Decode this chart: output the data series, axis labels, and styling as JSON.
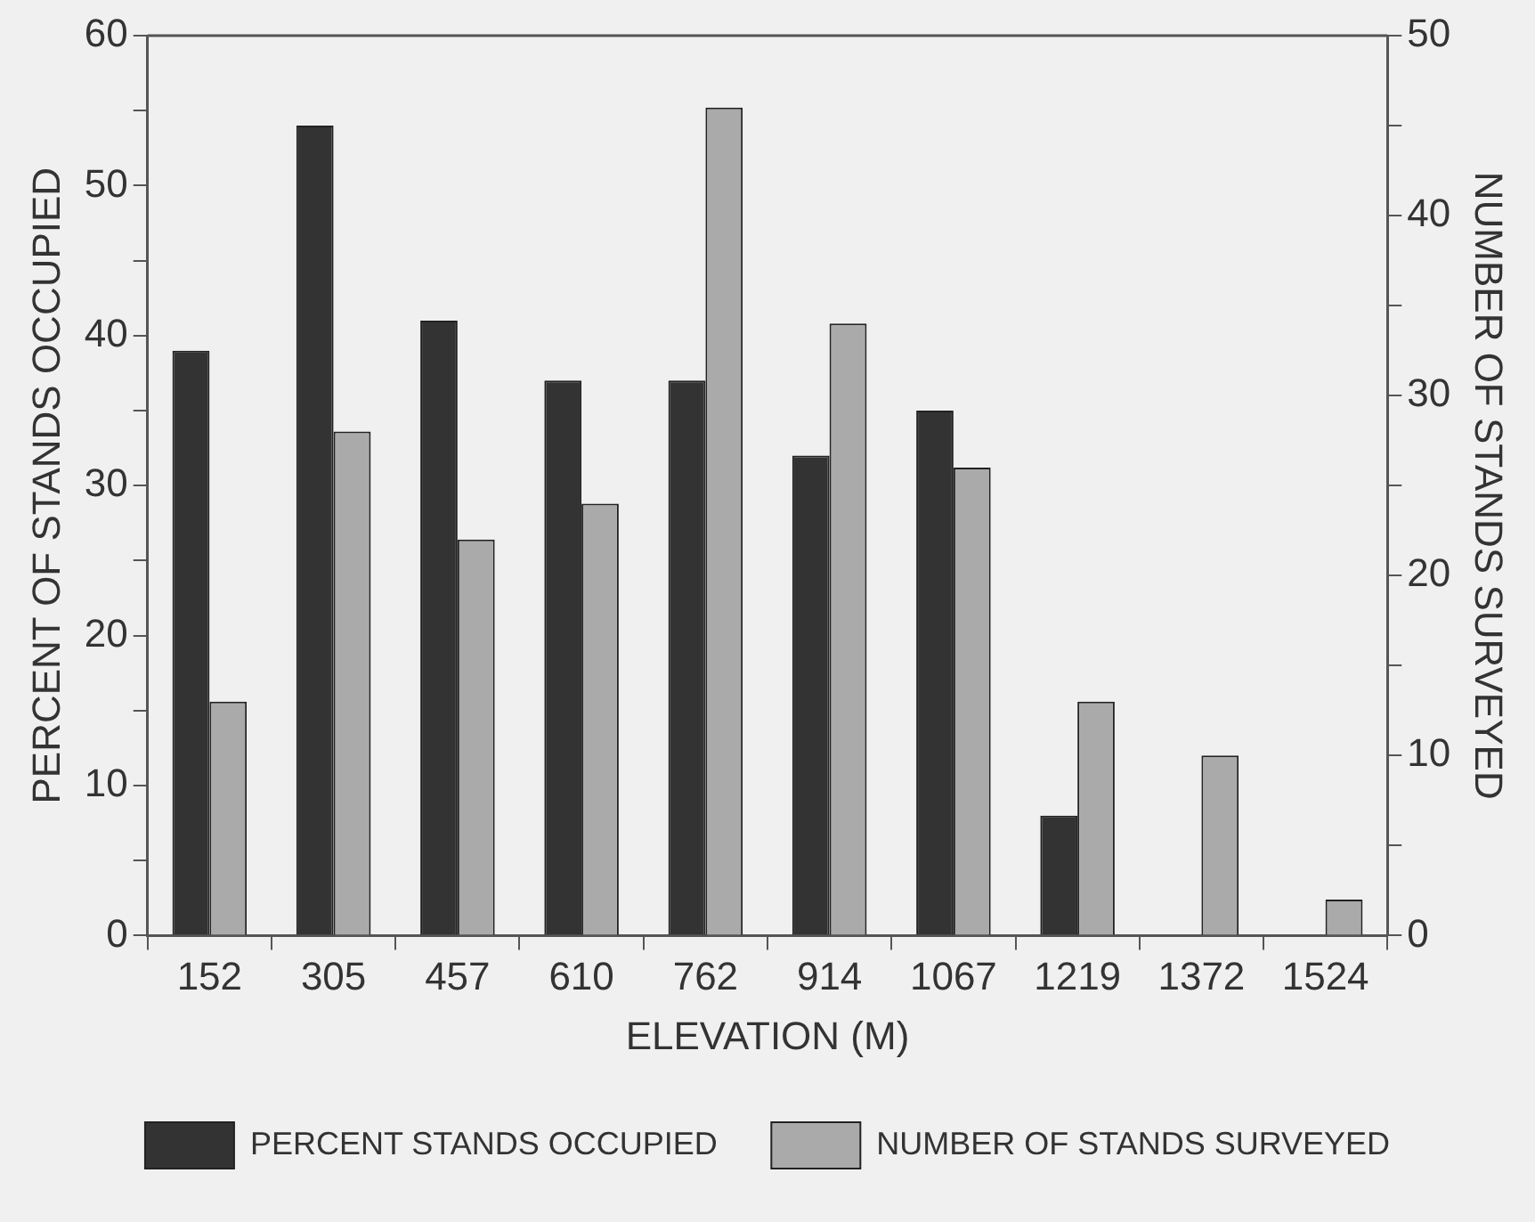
{
  "chart_data": {
    "type": "bar",
    "xlabel": "ELEVATION (M)",
    "ylabel": "PERCENT OF STANDS OCCUPIED",
    "y2label": "NUMBER OF STANDS SURVEYED",
    "categories": [
      "152",
      "305",
      "457",
      "610",
      "762",
      "914",
      "1067",
      "1219",
      "1372",
      "1524"
    ],
    "series": [
      {
        "name": "PERCENT STANDS OCCUPIED",
        "color": "#333333",
        "values": [
          39,
          54,
          41,
          37,
          37,
          32,
          35,
          8,
          0,
          0
        ]
      },
      {
        "name": "NUMBER OF STANDS SURVEYED",
        "color": "#aaaaaa",
        "axis": "y2",
        "values": [
          13,
          28,
          22,
          24,
          46,
          34,
          26,
          13,
          10,
          2
        ]
      }
    ],
    "ylim": [
      0,
      60
    ],
    "yticks": [
      0,
      {
        "value": 5,
        "label": null
      },
      10,
      {
        "value": 15,
        "label": null
      },
      20,
      {
        "value": 25,
        "label": null
      },
      30,
      {
        "value": 35,
        "label": null
      },
      40,
      {
        "value": 45,
        "label": null
      },
      50,
      {
        "value": 55,
        "label": null
      },
      60
    ],
    "y2lim": [
      0,
      50
    ],
    "y2ticks": [
      0,
      {
        "value": 5,
        "label": null
      },
      10,
      {
        "value": 15,
        "label": null
      },
      20,
      {
        "value": 25,
        "label": null
      },
      30,
      {
        "value": 35,
        "label": null
      },
      40,
      {
        "value": 45,
        "label": null
      },
      50
    ],
    "grid": false,
    "legend": "bottom"
  }
}
